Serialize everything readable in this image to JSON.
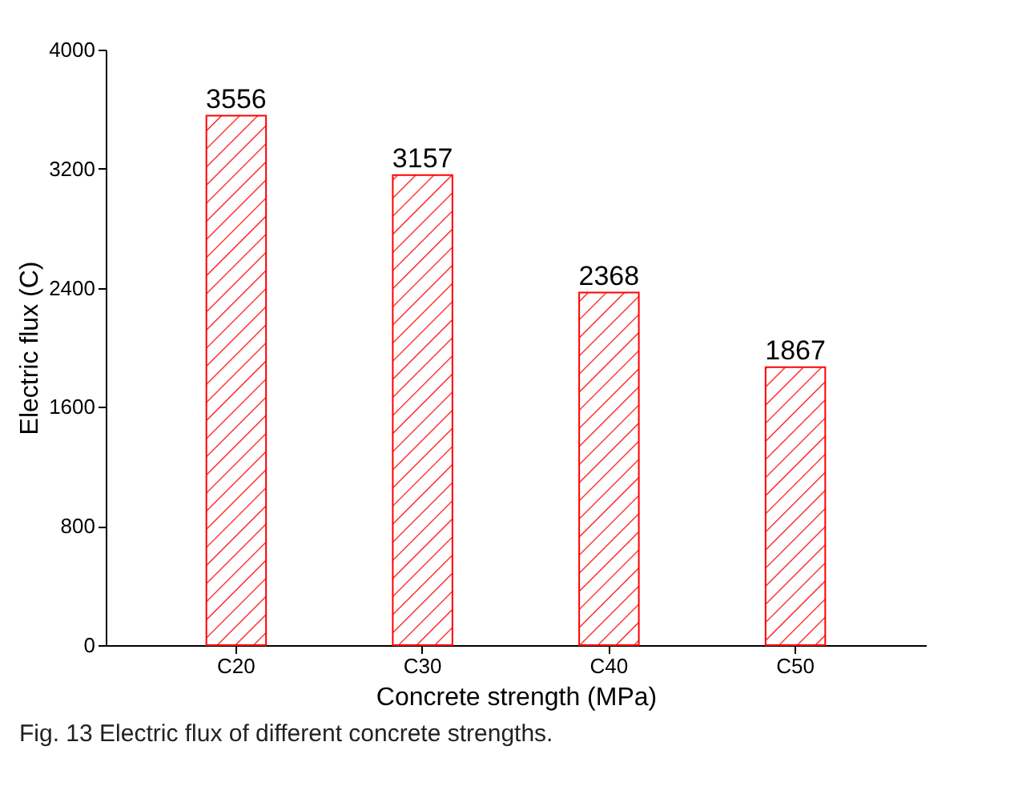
{
  "chart_data": {
    "type": "bar",
    "categories": [
      "C20",
      "C30",
      "C40",
      "C50"
    ],
    "values": [
      3556,
      3157,
      2368,
      1867
    ],
    "color": "#ff0000",
    "xlabel": "Concrete strength (MPa)",
    "ylabel": "Electric flux  (C)",
    "ylim": [
      0,
      4000
    ],
    "yticks": [
      0,
      800,
      1600,
      2400,
      3200,
      4000
    ],
    "data_labels": true,
    "grid": false,
    "annotations": [
      "Fig. 13  Electric flux of different concrete strengths."
    ]
  }
}
